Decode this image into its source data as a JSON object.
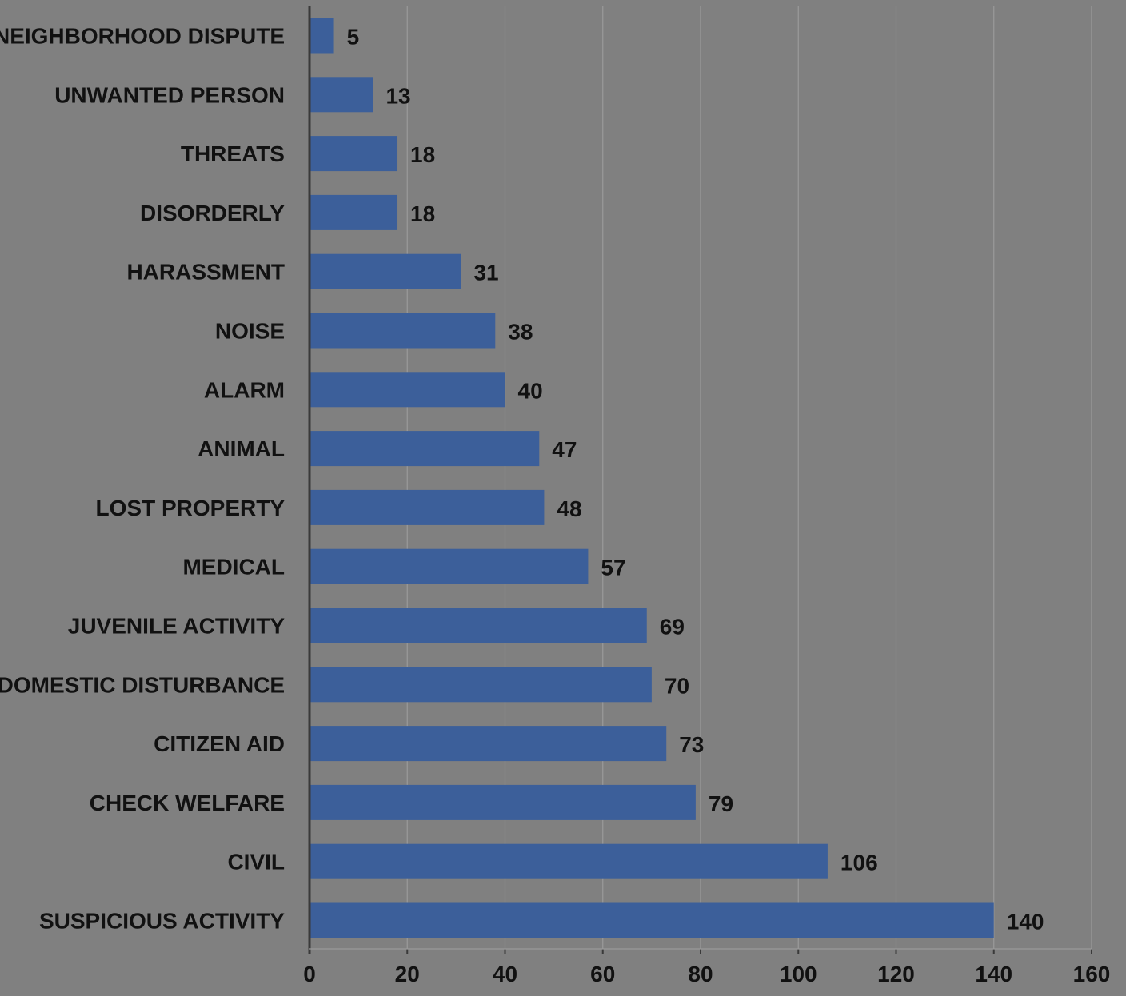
{
  "chart_data": {
    "type": "bar",
    "orientation": "horizontal",
    "title": "",
    "xlabel": "",
    "ylabel": "",
    "xlim": [
      0,
      160
    ],
    "x_ticks": [
      0,
      20,
      40,
      60,
      80,
      100,
      120,
      140,
      160
    ],
    "grid": "vertical",
    "legend": "none",
    "colors": {
      "background": "#808080",
      "bar": "#3c5f9a",
      "gridline": "#9a9a9a",
      "axis": "#3a3a3a",
      "text": "#111111"
    },
    "categories": [
      "NEIGHBORHOOD DISPUTE",
      "UNWANTED PERSON",
      "THREATS",
      "DISORDERLY",
      "HARASSMENT",
      "NOISE",
      "ALARM",
      "ANIMAL",
      "LOST PROPERTY",
      "MEDICAL",
      "JUVENILE ACTIVITY",
      "DOMESTIC DISTURBANCE",
      "CITIZEN AID",
      "CHECK WELFARE",
      "CIVIL",
      "SUSPICIOUS ACTIVITY"
    ],
    "values": [
      5,
      13,
      18,
      18,
      31,
      38,
      40,
      47,
      48,
      57,
      69,
      70,
      73,
      79,
      106,
      140
    ]
  }
}
